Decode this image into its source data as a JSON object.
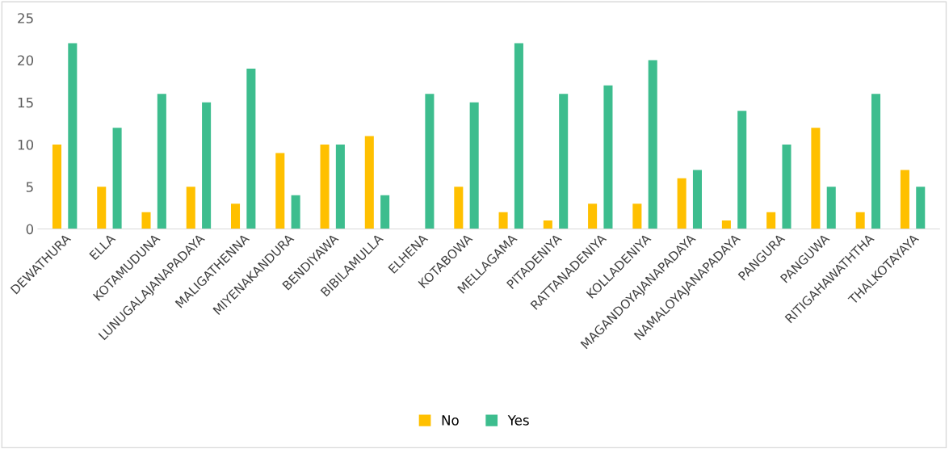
{
  "chart_data": {
    "type": "bar",
    "categories": [
      "DEWATHURA",
      "ELLA",
      "KOTAMUDUNA",
      "LUNUGALAJANAPADAYA",
      "MALIGATHENNA",
      "MIYENAKANDURA",
      "BENDIYAWA",
      "BIBILAMULLA",
      "ELHENA",
      "KOTABOWA",
      "MELLAGAMA",
      "PITADENIYA",
      "RATTANADENIYA",
      "KOLLADENIYA",
      "MAGANDOYAJANAPADAYA",
      "NAMALOYAJANAPADAYA",
      "PANGURA",
      "PANGUWA",
      "RITIGAHAWATHTHA",
      "THALKOTAYAYA"
    ],
    "series": [
      {
        "name": "No",
        "color": "#ffc000",
        "values": [
          10,
          5,
          2,
          5,
          3,
          9,
          10,
          11,
          0,
          5,
          2,
          1,
          3,
          3,
          6,
          1,
          2,
          12,
          2,
          7
        ]
      },
      {
        "name": "Yes",
        "color": "#3dbd8e",
        "values": [
          22,
          12,
          16,
          15,
          19,
          4,
          10,
          4,
          16,
          15,
          22,
          16,
          17,
          20,
          7,
          14,
          10,
          5,
          16,
          5
        ]
      }
    ],
    "ylim": [
      0,
      25
    ],
    "yticks": [
      0,
      5,
      10,
      15,
      20,
      25
    ],
    "grid": false,
    "legend": "bottom"
  }
}
